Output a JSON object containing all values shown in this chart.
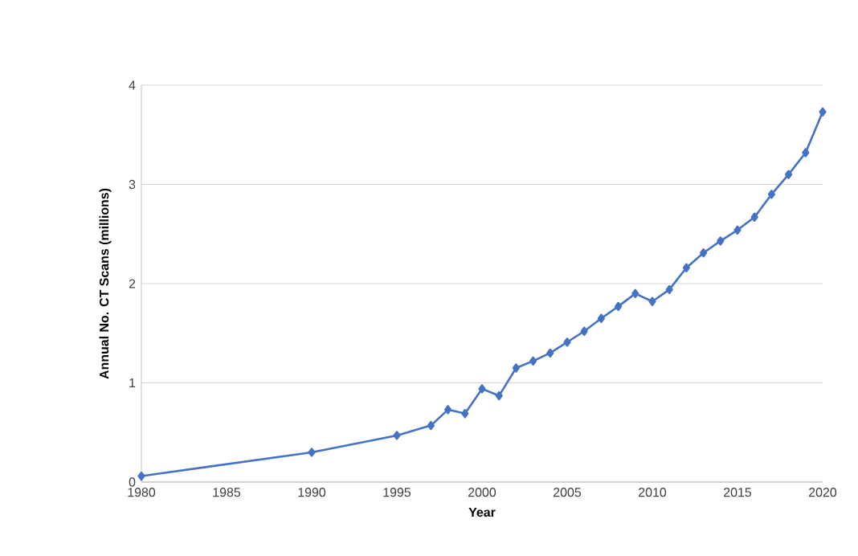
{
  "chart_data": {
    "type": "line",
    "xlabel": "Year",
    "ylabel": "Annual No. CT Scans (millions)",
    "x": [
      1980,
      1990,
      1995,
      1997,
      1998,
      1999,
      2000,
      2001,
      2002,
      2003,
      2004,
      2005,
      2006,
      2007,
      2008,
      2009,
      2010,
      2011,
      2012,
      2013,
      2014,
      2015,
      2016,
      2017,
      2018,
      2019,
      2020
    ],
    "values": [
      0.06,
      0.3,
      0.47,
      0.57,
      0.73,
      0.69,
      0.94,
      0.87,
      1.15,
      1.22,
      1.3,
      1.41,
      1.52,
      1.65,
      1.77,
      1.9,
      1.82,
      1.94,
      2.16,
      2.31,
      2.43,
      2.54,
      2.67,
      2.9,
      3.1,
      3.32,
      3.73
    ],
    "color": "#4472c4",
    "marker": "diamond",
    "line_style": "solid",
    "xlim": [
      1980,
      2020
    ],
    "ylim": [
      0,
      4
    ],
    "xticks": [
      1980,
      1985,
      1990,
      1995,
      2000,
      2005,
      2010,
      2015,
      2020
    ],
    "yticks": [
      0,
      1,
      2,
      3,
      4
    ],
    "grid": "y"
  }
}
